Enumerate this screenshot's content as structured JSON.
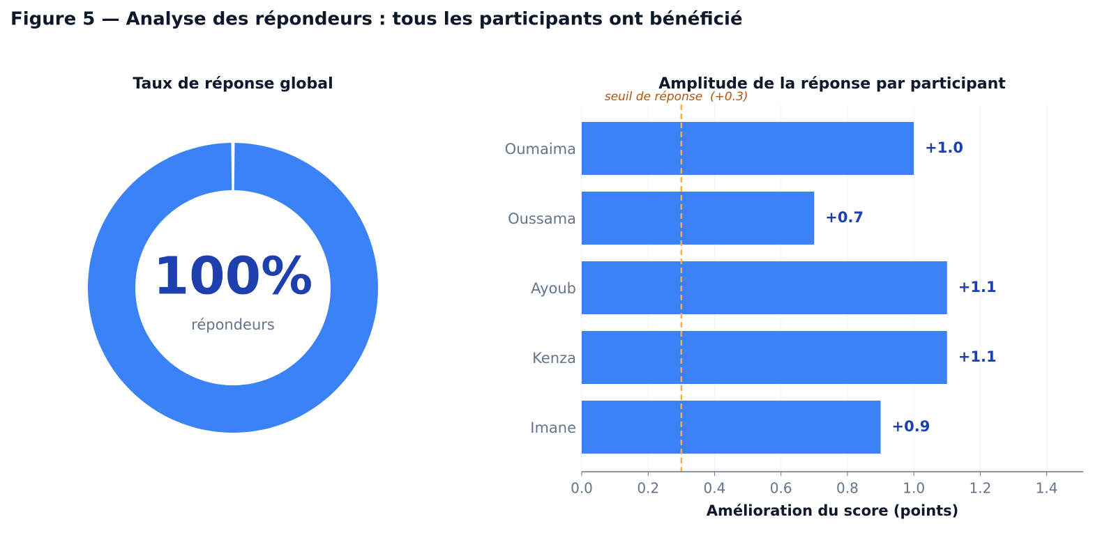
{
  "title": "Figure 5 — Analyse des répondeurs : tous les participants ont bénéficié",
  "chart_data": [
    {
      "type": "pie",
      "title": "Taux de réponse global",
      "categories": [
        "répondeurs"
      ],
      "values": [
        100
      ],
      "value_labels": [
        "100%"
      ],
      "color": "#3b82f6"
    },
    {
      "type": "bar",
      "orientation": "horizontal",
      "title": "Amplitude de la réponse par participant",
      "categories": [
        "Oumaima",
        "Oussama",
        "Ayoub",
        "Kenza",
        "Imane"
      ],
      "values": [
        1.0,
        0.7,
        1.1,
        1.1,
        0.9
      ],
      "value_labels": [
        "+1.0",
        "+0.7",
        "+1.1",
        "+1.1",
        "+0.9"
      ],
      "color": "#3b82f6",
      "xlabel": "Amélioration du score (points)",
      "xlim": [
        0,
        1.51
      ],
      "xticks": [
        {
          "value": 0,
          "label": "0.0"
        },
        0.2,
        0.4,
        0.6,
        0.8,
        {
          "value": 1,
          "label": "1.0"
        },
        1.2,
        1.4
      ],
      "grid": true,
      "threshold": {
        "value": 0.3,
        "label": "seuil de réponse  (+0.3)",
        "color": "#f6ad45"
      }
    }
  ]
}
